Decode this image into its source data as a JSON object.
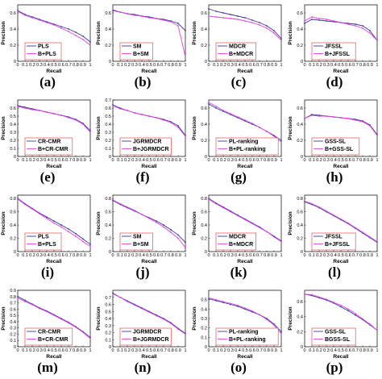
{
  "colors": {
    "baseline": "#3a3a9a",
    "ours": "#e040e0",
    "legend_border": "#e05050",
    "axis": "#000000"
  },
  "axis_text": {
    "xlabel": "Recall",
    "ylabel": "Precision"
  },
  "chart_data": [
    {
      "label": "(a)",
      "type": "line",
      "xticks": [
        "0",
        "0.1",
        "0.2",
        "0.3",
        "0.4",
        "0.5",
        "0.6",
        "0.7",
        "0.8",
        "0.9",
        "1"
      ],
      "yticks": [
        "0",
        "0.2",
        "0.4",
        "0.6"
      ],
      "ylim": [
        0,
        0.7
      ],
      "x": [
        0,
        0.1,
        0.2,
        0.3,
        0.4,
        0.5,
        0.6,
        0.7,
        0.8,
        0.9,
        1
      ],
      "legend_position": "bottom-left",
      "series": [
        {
          "name": "PLS",
          "values": [
            0.63,
            0.58,
            0.55,
            0.52,
            0.49,
            0.46,
            0.43,
            0.4,
            0.36,
            0.31,
            0.24
          ]
        },
        {
          "name": "B+PLS",
          "values": [
            0.62,
            0.57,
            0.54,
            0.51,
            0.48,
            0.45,
            0.41,
            0.37,
            0.32,
            0.27,
            0.2
          ]
        }
      ]
    },
    {
      "label": "(b)",
      "type": "line",
      "xticks": [
        "0",
        "0.1",
        "0.2",
        "0.3",
        "0.4",
        "0.5",
        "0.6",
        "0.7",
        "0.8",
        "0.9",
        "1"
      ],
      "yticks": [
        "0",
        "0.2",
        "0.4",
        "0.6"
      ],
      "ylim": [
        0,
        0.7
      ],
      "x": [
        0,
        0.1,
        0.2,
        0.3,
        0.4,
        0.5,
        0.6,
        0.7,
        0.8,
        0.9,
        1
      ],
      "legend_position": "bottom-left",
      "series": [
        {
          "name": "SM",
          "values": [
            0.63,
            0.61,
            0.59,
            0.58,
            0.56,
            0.55,
            0.53,
            0.52,
            0.5,
            0.47,
            0.38
          ]
        },
        {
          "name": "B+SM",
          "values": [
            0.64,
            0.61,
            0.59,
            0.57,
            0.56,
            0.54,
            0.53,
            0.51,
            0.49,
            0.44,
            0.06
          ]
        }
      ]
    },
    {
      "label": "(c)",
      "type": "line",
      "xticks": [
        "0",
        "0.1",
        "0.2",
        "0.3",
        "0.4",
        "0.5",
        "0.6",
        "0.7",
        "0.8",
        "0.9",
        "1"
      ],
      "yticks": [
        "0",
        "0.2",
        "0.4",
        "0.6"
      ],
      "ylim": [
        0,
        0.7
      ],
      "x": [
        0,
        0.1,
        0.2,
        0.3,
        0.4,
        0.5,
        0.6,
        0.7,
        0.8,
        0.9,
        1
      ],
      "legend_position": "bottom-left",
      "series": [
        {
          "name": "MDCR",
          "values": [
            0.65,
            0.62,
            0.6,
            0.58,
            0.56,
            0.54,
            0.51,
            0.48,
            0.44,
            0.38,
            0.28
          ]
        },
        {
          "name": "B+MDCR",
          "values": [
            0.56,
            0.55,
            0.54,
            0.53,
            0.52,
            0.5,
            0.48,
            0.45,
            0.41,
            0.35,
            0.26
          ]
        }
      ]
    },
    {
      "label": "(d)",
      "type": "line",
      "xticks": [
        "0",
        "0.1",
        "0.2",
        "0.3",
        "0.4",
        "0.5",
        "0.6",
        "0.7",
        "0.8",
        "0.9",
        "1"
      ],
      "yticks": [
        "0",
        "0.2",
        "0.4",
        "0.6"
      ],
      "ylim": [
        0,
        0.7
      ],
      "x": [
        0,
        0.1,
        0.2,
        0.3,
        0.4,
        0.5,
        0.6,
        0.7,
        0.8,
        0.9,
        1
      ],
      "legend_position": "bottom-left",
      "series": [
        {
          "name": "JFSSL",
          "values": [
            0.47,
            0.52,
            0.51,
            0.5,
            0.49,
            0.48,
            0.47,
            0.46,
            0.44,
            0.38,
            0.26
          ]
        },
        {
          "name": "B+JFSSL",
          "values": [
            0.5,
            0.55,
            0.53,
            0.52,
            0.5,
            0.48,
            0.46,
            0.44,
            0.41,
            0.35,
            0.26
          ]
        }
      ]
    },
    {
      "label": "(e)",
      "type": "line",
      "xticks": [
        "0",
        "0.1",
        "0.2",
        "0.3",
        "0.4",
        "0.5",
        "0.6",
        "0.7",
        "0.8",
        "0.9",
        "1"
      ],
      "yticks": [
        "0",
        "0.1",
        "0.2",
        "0.3",
        "0.4",
        "0.5",
        "0.6"
      ],
      "ylim": [
        0,
        0.7
      ],
      "x": [
        0,
        0.1,
        0.2,
        0.3,
        0.4,
        0.5,
        0.6,
        0.7,
        0.8,
        0.9,
        1
      ],
      "legend_position": "bottom-left",
      "series": [
        {
          "name": "CR-CMR",
          "values": [
            0.63,
            0.61,
            0.59,
            0.57,
            0.55,
            0.53,
            0.51,
            0.49,
            0.46,
            0.41,
            0.32
          ]
        },
        {
          "name": "B+CR-CMR",
          "values": [
            0.62,
            0.6,
            0.58,
            0.57,
            0.55,
            0.53,
            0.51,
            0.48,
            0.45,
            0.4,
            0.3
          ]
        }
      ]
    },
    {
      "label": "(f)",
      "type": "line",
      "xticks": [
        "0",
        "0.1",
        "0.2",
        "0.3",
        "0.4",
        "0.5",
        "0.6",
        "0.7",
        "0.8",
        "0.9",
        "1"
      ],
      "yticks": [
        "0",
        "0.1",
        "0.2",
        "0.3",
        "0.4",
        "0.5",
        "0.6",
        "0.7"
      ],
      "ylim": [
        0,
        0.7
      ],
      "x": [
        0,
        0.1,
        0.2,
        0.3,
        0.4,
        0.5,
        0.6,
        0.7,
        0.8,
        0.9,
        1
      ],
      "legend_position": "bottom-left",
      "series": [
        {
          "name": "JGRMDCR",
          "values": [
            0.64,
            0.6,
            0.57,
            0.54,
            0.52,
            0.5,
            0.48,
            0.46,
            0.43,
            0.38,
            0.26
          ]
        },
        {
          "name": "B+JGRMDCR",
          "values": [
            0.63,
            0.59,
            0.57,
            0.54,
            0.52,
            0.5,
            0.48,
            0.45,
            0.42,
            0.36,
            0.25
          ]
        }
      ]
    },
    {
      "label": "(g)",
      "type": "line",
      "xticks": [
        "0",
        "0.1",
        "0.2",
        "0.3",
        "0.4",
        "0.5",
        "0.6",
        "0.7",
        "0.8",
        "0.9",
        "1"
      ],
      "yticks": [
        "0",
        "0.2",
        "0.4",
        "0.6"
      ],
      "ylim": [
        0,
        0.7
      ],
      "x": [
        0,
        0.1,
        0.2,
        0.3,
        0.4,
        0.5,
        0.6,
        0.7,
        0.8,
        0.9,
        1
      ],
      "legend_position": "bottom-left",
      "series": [
        {
          "name": "PL-ranking",
          "values": [
            0.65,
            0.6,
            0.56,
            0.52,
            0.48,
            0.44,
            0.4,
            0.36,
            0.31,
            0.26,
            0.2
          ]
        },
        {
          "name": "B+PL-ranking",
          "values": [
            0.67,
            0.62,
            0.57,
            0.53,
            0.49,
            0.45,
            0.41,
            0.36,
            0.31,
            0.25,
            0.18
          ]
        }
      ]
    },
    {
      "label": "(h)",
      "type": "line",
      "xticks": [
        "0",
        "0.1",
        "0.2",
        "0.3",
        "0.4",
        "0.5",
        "0.6",
        "0.7",
        "0.8",
        "0.9",
        "1"
      ],
      "yticks": [
        "0",
        "0.2",
        "0.4",
        "0.6"
      ],
      "ylim": [
        0,
        0.7
      ],
      "x": [
        0,
        0.1,
        0.2,
        0.3,
        0.4,
        0.5,
        0.6,
        0.7,
        0.8,
        0.9,
        1
      ],
      "legend_position": "bottom-left",
      "series": [
        {
          "name": "GSS-SL",
          "values": [
            0.47,
            0.52,
            0.51,
            0.5,
            0.49,
            0.48,
            0.47,
            0.46,
            0.44,
            0.39,
            0.27
          ]
        },
        {
          "name": "B+GSS-SL",
          "values": [
            0.47,
            0.51,
            0.5,
            0.5,
            0.49,
            0.48,
            0.47,
            0.45,
            0.43,
            0.38,
            0.26
          ]
        }
      ]
    },
    {
      "label": "(i)",
      "type": "line",
      "xticks": [
        "0",
        "0.1",
        "0.2",
        "0.3",
        "0.4",
        "0.5",
        "0.6",
        "0.7",
        "0.8",
        "0.9",
        "1"
      ],
      "yticks": [
        "0",
        "0.2",
        "0.4",
        "0.6",
        "0.8"
      ],
      "ylim": [
        0,
        0.85
      ],
      "x": [
        0,
        0.1,
        0.2,
        0.3,
        0.4,
        0.5,
        0.6,
        0.7,
        0.8,
        0.9,
        1
      ],
      "legend_position": "bottom-left",
      "series": [
        {
          "name": "PLS",
          "values": [
            0.8,
            0.72,
            0.65,
            0.58,
            0.52,
            0.46,
            0.4,
            0.34,
            0.27,
            0.19,
            0.11
          ]
        },
        {
          "name": "B+PLS",
          "values": [
            0.79,
            0.71,
            0.64,
            0.57,
            0.5,
            0.43,
            0.37,
            0.3,
            0.23,
            0.15,
            0.08
          ]
        }
      ]
    },
    {
      "label": "(j)",
      "type": "line",
      "xticks": [
        "0",
        "0.1",
        "0.2",
        "0.3",
        "0.4",
        "0.5",
        "0.6",
        "0.7",
        "0.8",
        "0.9",
        "1"
      ],
      "yticks": [
        "0",
        "0.2",
        "0.4",
        "0.6",
        "0.8"
      ],
      "ylim": [
        0,
        0.85
      ],
      "x": [
        0,
        0.1,
        0.2,
        0.3,
        0.4,
        0.5,
        0.6,
        0.7,
        0.8,
        0.9,
        1
      ],
      "legend_position": "bottom-left",
      "series": [
        {
          "name": "SM",
          "values": [
            0.77,
            0.71,
            0.66,
            0.61,
            0.56,
            0.51,
            0.46,
            0.4,
            0.33,
            0.25,
            0.14
          ]
        },
        {
          "name": "B+SM",
          "values": [
            0.78,
            0.72,
            0.67,
            0.62,
            0.56,
            0.5,
            0.44,
            0.37,
            0.29,
            0.2,
            0.06
          ]
        }
      ]
    },
    {
      "label": "(k)",
      "type": "line",
      "xticks": [
        "0",
        "0.1",
        "0.2",
        "0.3",
        "0.4",
        "0.5",
        "0.6",
        "0.7",
        "0.8",
        "0.9",
        "1"
      ],
      "yticks": [
        "0",
        "0.2",
        "0.4",
        "0.6",
        "0.8"
      ],
      "ylim": [
        0,
        0.85
      ],
      "x": [
        0,
        0.1,
        0.2,
        0.3,
        0.4,
        0.5,
        0.6,
        0.7,
        0.8,
        0.9,
        1
      ],
      "legend_position": "bottom-left",
      "series": [
        {
          "name": "MDCR",
          "values": [
            0.8,
            0.73,
            0.67,
            0.61,
            0.55,
            0.49,
            0.43,
            0.37,
            0.3,
            0.23,
            0.16
          ]
        },
        {
          "name": "B+MDCR",
          "values": [
            0.79,
            0.72,
            0.66,
            0.6,
            0.54,
            0.48,
            0.42,
            0.36,
            0.3,
            0.22,
            0.15
          ]
        }
      ]
    },
    {
      "label": "(l)",
      "type": "line",
      "xticks": [
        "0",
        "0.1",
        "0.2",
        "0.3",
        "0.4",
        "0.5",
        "0.6",
        "0.7",
        "0.8",
        "0.9",
        "1"
      ],
      "yticks": [
        "0",
        "0.2",
        "0.4",
        "0.6",
        "0.8"
      ],
      "ylim": [
        0,
        0.85
      ],
      "x": [
        0,
        0.1,
        0.2,
        0.3,
        0.4,
        0.5,
        0.6,
        0.7,
        0.8,
        0.9,
        1
      ],
      "legend_position": "bottom-left",
      "series": [
        {
          "name": "JFSSL",
          "values": [
            0.75,
            0.71,
            0.66,
            0.6,
            0.54,
            0.48,
            0.42,
            0.35,
            0.28,
            0.21,
            0.14
          ]
        },
        {
          "name": "B+JFSSL",
          "values": [
            0.76,
            0.72,
            0.67,
            0.61,
            0.55,
            0.49,
            0.43,
            0.36,
            0.29,
            0.22,
            0.15
          ]
        }
      ]
    },
    {
      "label": "(m)",
      "type": "line",
      "xticks": [
        "0",
        "0.1",
        "0.2",
        "0.3",
        "0.4",
        "0.5",
        "0.6",
        "0.7",
        "0.8",
        "0.9",
        "1"
      ],
      "yticks": [
        "0",
        "0.1",
        "0.2",
        "0.3",
        "0.4",
        "0.5",
        "0.6",
        "0.7",
        "0.8",
        "0.9"
      ],
      "ylim": [
        0,
        0.9
      ],
      "x": [
        0,
        0.1,
        0.2,
        0.3,
        0.4,
        0.5,
        0.6,
        0.7,
        0.8,
        0.9,
        1
      ],
      "legend_position": "bottom-left",
      "series": [
        {
          "name": "CR-CMR",
          "values": [
            0.8,
            0.74,
            0.68,
            0.62,
            0.57,
            0.51,
            0.45,
            0.39,
            0.32,
            0.24,
            0.15
          ]
        },
        {
          "name": "B+CR-CMR",
          "values": [
            0.78,
            0.72,
            0.67,
            0.61,
            0.56,
            0.5,
            0.44,
            0.38,
            0.31,
            0.23,
            0.13
          ]
        }
      ]
    },
    {
      "label": "(n)",
      "type": "line",
      "xticks": [
        "0",
        "0.1",
        "0.2",
        "0.3",
        "0.4",
        "0.5",
        "0.6",
        "0.7",
        "0.8",
        "0.9",
        "1"
      ],
      "yticks": [
        "0",
        "0.1",
        "0.2",
        "0.3",
        "0.4",
        "0.5",
        "0.6",
        "0.7"
      ],
      "ylim": [
        0,
        0.8
      ],
      "x": [
        0,
        0.1,
        0.2,
        0.3,
        0.4,
        0.5,
        0.6,
        0.7,
        0.8,
        0.9,
        1
      ],
      "legend_position": "bottom-left",
      "series": [
        {
          "name": "JGRMDCR",
          "values": [
            0.76,
            0.7,
            0.65,
            0.6,
            0.55,
            0.5,
            0.45,
            0.4,
            0.34,
            0.26,
            0.19
          ]
        },
        {
          "name": "B+JGRMDCR",
          "values": [
            0.75,
            0.7,
            0.64,
            0.59,
            0.54,
            0.49,
            0.44,
            0.39,
            0.33,
            0.25,
            0.18
          ]
        }
      ]
    },
    {
      "label": "(o)",
      "type": "line",
      "xticks": [
        "0",
        "0.1",
        "0.2",
        "0.3",
        "0.4",
        "0.5",
        "0.6",
        "0.7",
        "0.8",
        "0.9",
        "1"
      ],
      "yticks": [
        "0",
        "0.1",
        "0.2",
        "0.3",
        "0.4",
        "0.5"
      ],
      "ylim": [
        0,
        0.6
      ],
      "x": [
        0,
        0.1,
        0.2,
        0.3,
        0.4,
        0.5,
        0.6,
        0.7,
        0.8,
        0.9,
        1
      ],
      "legend_position": "bottom-left",
      "series": [
        {
          "name": "PL-ranking",
          "values": [
            0.51,
            0.49,
            0.47,
            0.45,
            0.43,
            0.4,
            0.37,
            0.34,
            0.3,
            0.24,
            0.16
          ]
        },
        {
          "name": "B+PL-ranking",
          "values": [
            0.52,
            0.5,
            0.48,
            0.46,
            0.44,
            0.41,
            0.38,
            0.34,
            0.29,
            0.23,
            0.14
          ]
        }
      ]
    },
    {
      "label": "(p)",
      "type": "line",
      "xticks": [
        "0",
        "0.1",
        "0.2",
        "0.3",
        "0.4",
        "0.5",
        "0.6",
        "0.7",
        "0.8",
        "0.9",
        "1"
      ],
      "yticks": [
        "0",
        "0.2",
        "0.4",
        "0.6"
      ],
      "ylim": [
        0,
        0.75
      ],
      "x": [
        0,
        0.1,
        0.2,
        0.3,
        0.4,
        0.5,
        0.6,
        0.7,
        0.8,
        0.9,
        1
      ],
      "legend_position": "bottom-left",
      "series": [
        {
          "name": "GSS-SL",
          "values": [
            0.7,
            0.68,
            0.65,
            0.62,
            0.58,
            0.53,
            0.48,
            0.42,
            0.36,
            0.29,
            0.22
          ]
        },
        {
          "name": "BGSS-SL",
          "values": [
            0.7,
            0.69,
            0.66,
            0.63,
            0.59,
            0.55,
            0.5,
            0.44,
            0.37,
            0.3,
            0.22
          ]
        }
      ]
    }
  ]
}
